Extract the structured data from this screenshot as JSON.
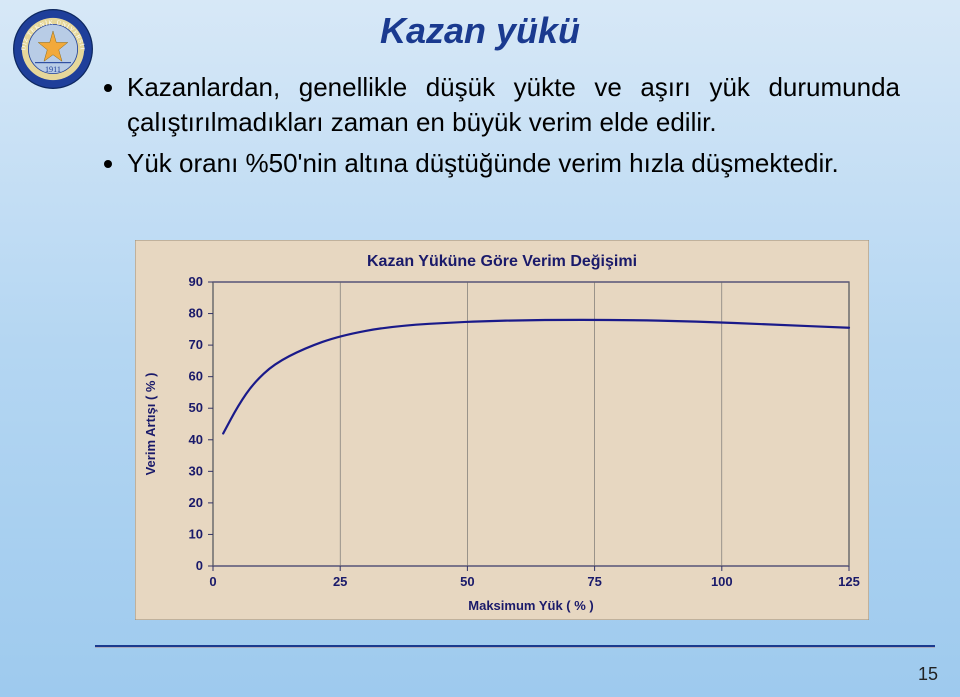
{
  "slide": {
    "title": "Kazan yükü",
    "bullet1": "Kazanlardan, genellikle düşük yükte ve aşırı yük durumunda çalıştırılmadıkları zaman en büyük verim elde edilir.",
    "bullet2": "Yük oranı %50'nin altına düştüğünde verim hızla düşmektedir.",
    "page_number": "15"
  },
  "logo": {
    "outer_ring_fill": "#1f3f9a",
    "inner_ring_fill": "#e6d79a",
    "center_fill": "#b8cce6",
    "star_fill": "#f2a93b",
    "year": "1911"
  },
  "chart": {
    "type": "line",
    "title": "Kazan Yüküne Göre Verim Değişimi",
    "title_fontsize": 16,
    "title_color": "#1a1a6a",
    "background_color": "#e7d7c1",
    "plot_border_color": "#333366",
    "xlabel": "Maksimum Yük ( % )",
    "ylabel": "Verim Artışı ( % )",
    "axis_label_color": "#1a1a6a",
    "axis_label_fontsize": 13,
    "tick_color": "#1a1a6a",
    "tick_fontsize": 13,
    "x_ticks": [
      0,
      25,
      50,
      75,
      100,
      125
    ],
    "y_ticks": [
      0,
      10,
      20,
      30,
      40,
      50,
      60,
      70,
      80,
      90
    ],
    "xlim": [
      0,
      125
    ],
    "ylim": [
      0,
      90
    ],
    "series": {
      "color": "#1a1a8a",
      "line_width": 2.2,
      "x": [
        2,
        5,
        8,
        12,
        18,
        25,
        35,
        50,
        65,
        80,
        95,
        110,
        125
      ],
      "y": [
        42,
        51,
        58,
        64,
        69,
        73,
        76,
        77.5,
        78,
        78,
        77.5,
        76.5,
        75.5
      ]
    },
    "grid_major_x": true,
    "grid_color": "#666"
  }
}
